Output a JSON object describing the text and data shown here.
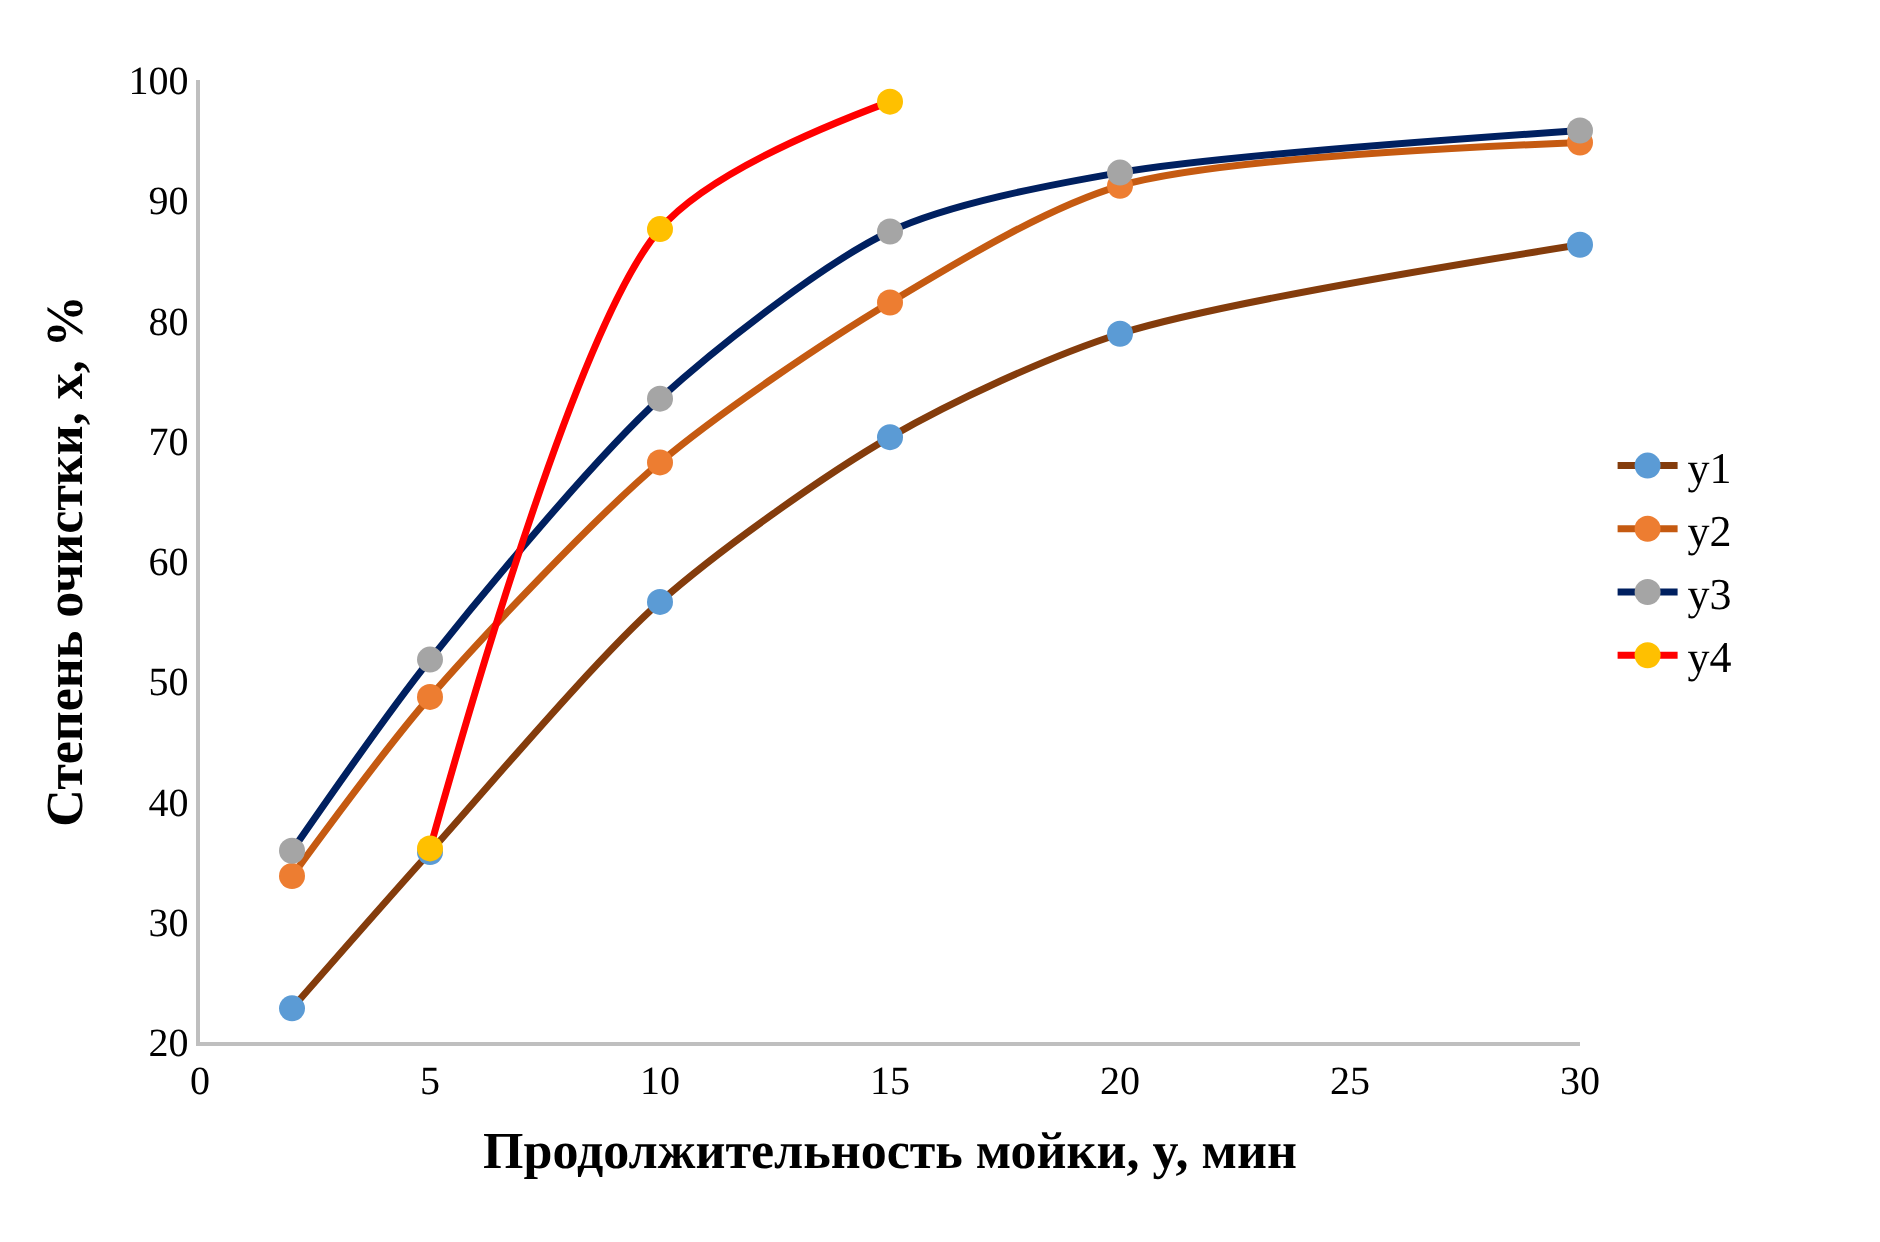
{
  "chart_data": {
    "type": "line",
    "xlabel": "Продолжительность мойки, y, мин",
    "ylabel": "Степень очистки, x, %",
    "x": [
      2,
      5,
      10,
      15,
      20,
      30
    ],
    "series": [
      {
        "name": "y1",
        "color": "#843c0c",
        "colors": [
          "#5b9bd5",
          "#5b9bd5",
          "#5b9bd5",
          "#5b9bd5",
          "#5b9bd5",
          "#5b9bd5"
        ],
        "values": [
          22.8,
          35.8,
          56.6,
          70.3,
          78.9,
          86.3
        ]
      },
      {
        "name": "y2",
        "color": "#c55a11",
        "colors": [
          "#ed7d31",
          "#ed7d31",
          "#ed7d31",
          "#ed7d31",
          "#ed7d31",
          "#ed7d31"
        ],
        "values": [
          33.8,
          48.7,
          68.2,
          81.5,
          91.2,
          94.8
        ]
      },
      {
        "name": "y3",
        "color": "#002060",
        "colors": [
          "#a5a5a5",
          "#a5a5a5",
          "#a5a5a5",
          "#a5a5a5",
          "#a5a5a5",
          "#a5a5a5"
        ],
        "values": [
          35.9,
          51.8,
          73.5,
          87.4,
          92.3,
          95.8
        ]
      },
      {
        "name": "y4",
        "color": "#ff0000",
        "x": [
          5,
          10,
          15
        ],
        "colors": [
          "#ffc000",
          "#ffc000",
          "#ffc000"
        ],
        "values": [
          36.1,
          87.6,
          98.2
        ]
      }
    ],
    "xlim": [
      0,
      30
    ],
    "xticks": [
      0,
      5,
      10,
      15,
      20,
      25,
      30
    ],
    "ylim": [
      20,
      100
    ],
    "yticks": [
      20,
      30,
      40,
      50,
      60,
      70,
      80,
      90,
      100
    ],
    "legend": "right",
    "marker": "circle",
    "line_style": "solid"
  }
}
